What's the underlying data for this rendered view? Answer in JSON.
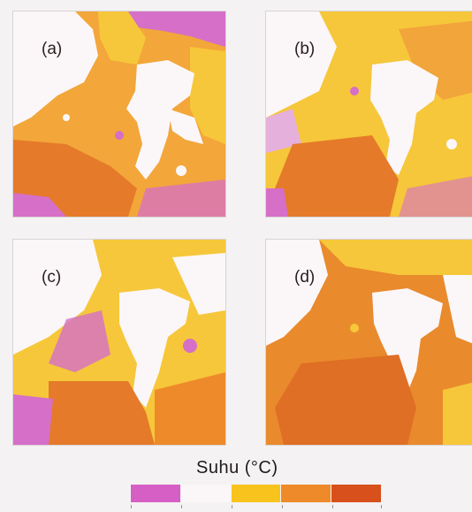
{
  "panels": [
    {
      "id": "a",
      "label": "(a)"
    },
    {
      "id": "b",
      "label": "(b)"
    },
    {
      "id": "c",
      "label": "(c)"
    },
    {
      "id": "d",
      "label": "(d)"
    }
  ],
  "legend": {
    "title": "Suhu (°C)",
    "colors": [
      "#d65fc6",
      "#fbf6f8",
      "#f9c31d",
      "#ee8a2a",
      "#d8501c"
    ]
  }
}
